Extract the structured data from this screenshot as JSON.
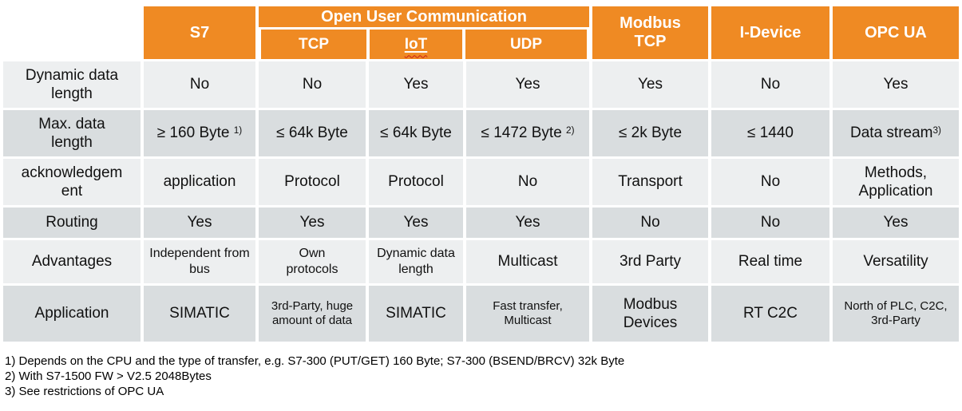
{
  "colors": {
    "header_orange": "#EF8A23",
    "row_light": "#EDEFF0",
    "row_dark": "#D9DDDF",
    "header_text": "#FFFFFF",
    "spellcheck_red": "#CC1A12"
  },
  "table": {
    "header": {
      "s7": "S7",
      "open_user_communication": "Open User Communication",
      "tcp": "TCP",
      "iot": "IoT",
      "udp": "UDP",
      "modbus_tcp": "Modbus TCP",
      "i_device": "I-Device",
      "opc_ua": "OPC UA"
    },
    "rows": [
      {
        "label": "Dynamic data length",
        "cells": [
          {
            "text": "No"
          },
          {
            "text": "No"
          },
          {
            "text": "Yes"
          },
          {
            "text": "Yes"
          },
          {
            "text": "Yes"
          },
          {
            "text": "No"
          },
          {
            "text": "Yes"
          }
        ]
      },
      {
        "label": "Max. data length",
        "cells": [
          {
            "text": "≥ 160 Byte ",
            "sup": "1)"
          },
          {
            "text": "≤ 64k Byte"
          },
          {
            "text": "≤ 64k Byte"
          },
          {
            "text": "≤ 1472 Byte ",
            "sup": "2)"
          },
          {
            "text": "≤ 2k Byte"
          },
          {
            "text": "≤ 1440"
          },
          {
            "text": "Data stream",
            "sup": "3)"
          }
        ]
      },
      {
        "label": "acknowledgement",
        "cells": [
          {
            "text": "application"
          },
          {
            "text": "Protocol"
          },
          {
            "text": "Protocol"
          },
          {
            "text": "No"
          },
          {
            "text": "Transport"
          },
          {
            "text": "No"
          },
          {
            "text": "Methods, Application"
          }
        ]
      },
      {
        "label": "Routing",
        "cells": [
          {
            "text": "Yes"
          },
          {
            "text": "Yes"
          },
          {
            "text": "Yes"
          },
          {
            "text": "Yes"
          },
          {
            "text": "No"
          },
          {
            "text": "No"
          },
          {
            "text": "Yes"
          }
        ]
      },
      {
        "label": "Advantages",
        "cells": [
          {
            "text": "Independent from bus"
          },
          {
            "text": "Own protocols"
          },
          {
            "text": "Dynamic data length"
          },
          {
            "text": "Multicast"
          },
          {
            "text": "3rd Party"
          },
          {
            "text": "Real time"
          },
          {
            "text": "Versatility"
          }
        ]
      },
      {
        "label": "Application",
        "cells": [
          {
            "text": "SIMATIC"
          },
          {
            "text": "3rd-Party, huge amount of data"
          },
          {
            "text": "SIMATIC"
          },
          {
            "text": "Fast transfer, Multicast"
          },
          {
            "text": "Modbus Devices"
          },
          {
            "text": "RT C2C"
          },
          {
            "text": "North of PLC, C2C, 3rd-Party"
          }
        ]
      }
    ]
  },
  "footnotes": [
    "1) Depends on the CPU and the type of transfer, e.g. S7-300 (PUT/GET) 160 Byte; S7-300 (BSEND/BRCV) 32k Byte",
    "2) With S7-1500 FW > V2.5 2048Bytes",
    "3) See restrictions of OPC UA"
  ]
}
